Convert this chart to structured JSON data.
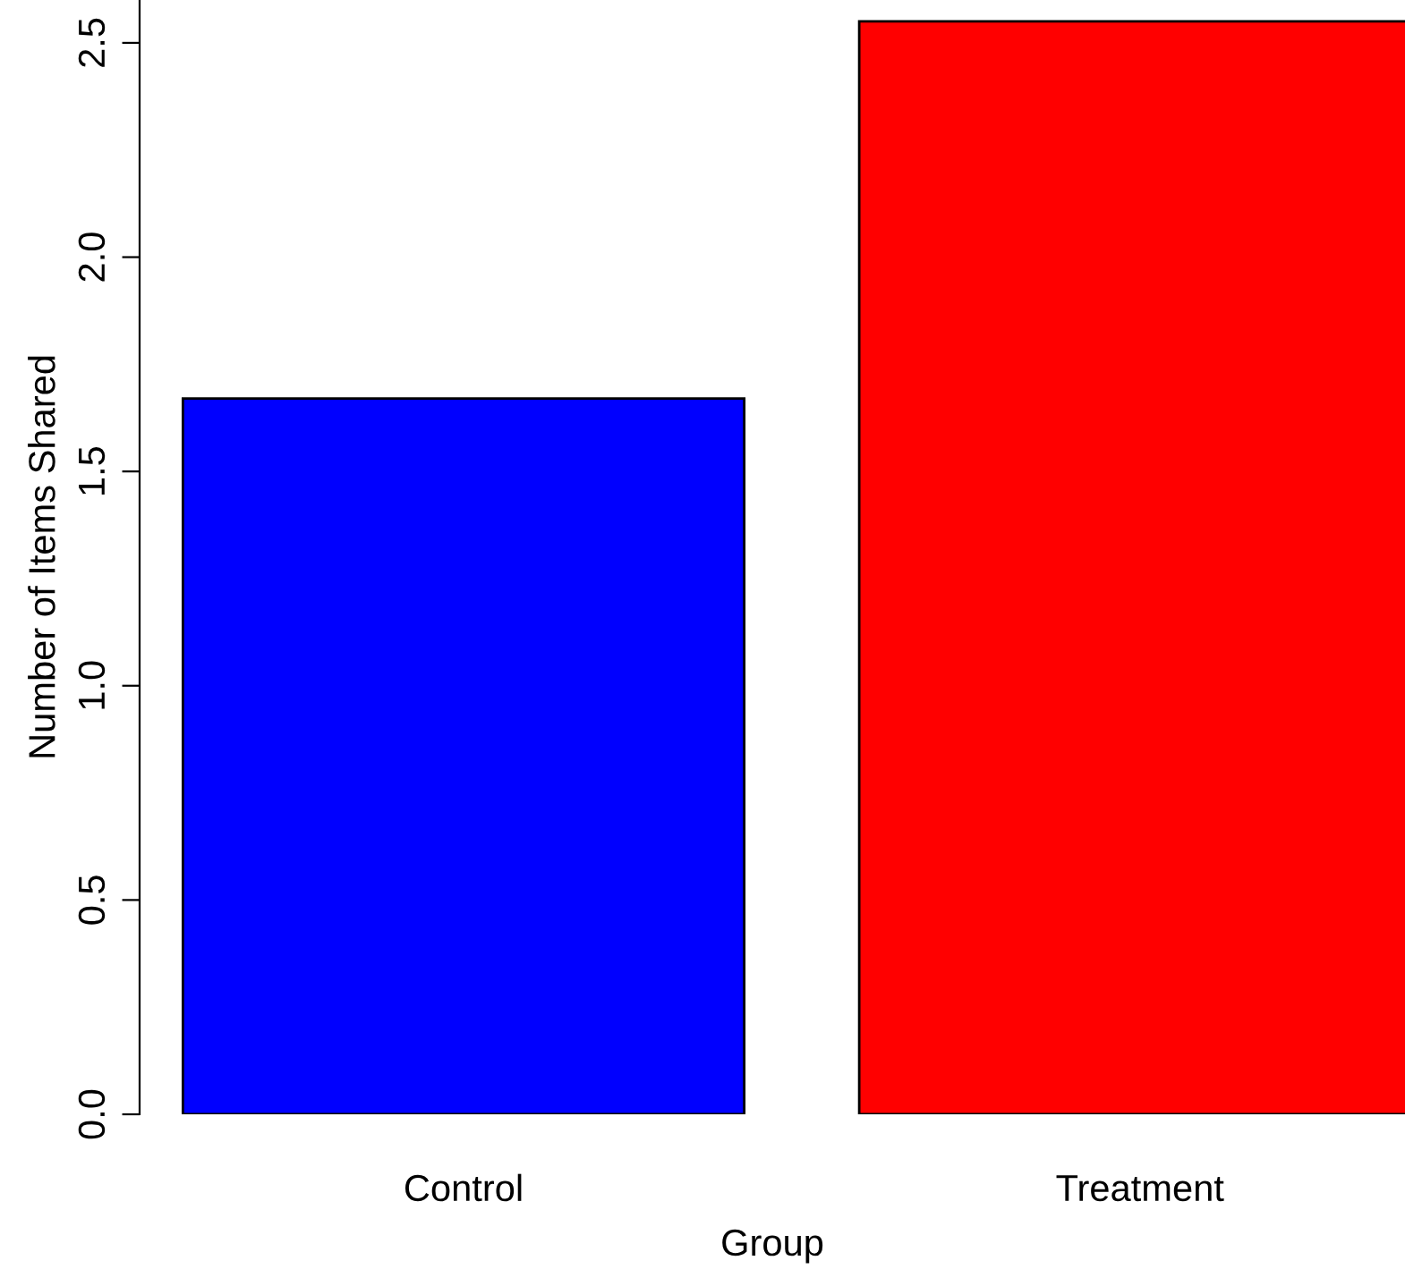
{
  "chart_data": {
    "type": "bar",
    "xlabel": "Group",
    "ylabel": "Number of Items Shared",
    "categories": [
      "Control",
      "Treatment"
    ],
    "values": [
      1.67,
      2.55
    ],
    "colors": [
      "#0000ff",
      "#ff0000"
    ],
    "ylim": [
      0,
      2.6
    ],
    "yticks": [
      {
        "value": 0,
        "label": "0.0"
      },
      {
        "value": 0.5,
        "label": "0.5"
      },
      {
        "value": 1.0,
        "label": "1.0"
      },
      {
        "value": 1.5,
        "label": "1.5"
      },
      {
        "value": 2.0,
        "label": "2.0"
      },
      {
        "value": 2.5,
        "label": "2.5"
      }
    ],
    "grid": false,
    "legend": false
  }
}
